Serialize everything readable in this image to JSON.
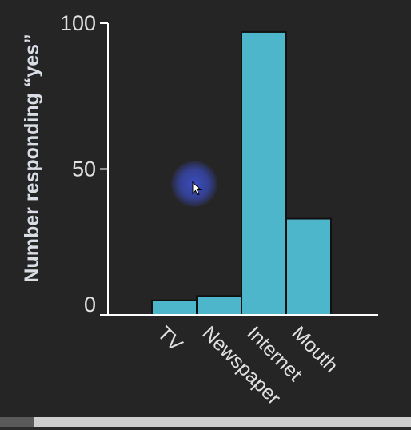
{
  "chart_data": {
    "type": "bar",
    "categories": [
      "TV",
      "Newspaper",
      "Internet",
      "Mouth"
    ],
    "values": [
      5,
      6.5,
      97,
      33
    ],
    "ylabel": "Number responding “yes”",
    "xlabel": "",
    "ylim": [
      0,
      100
    ],
    "yticks": [
      0,
      50,
      100
    ],
    "bar_color": "#4db6cb",
    "grid": false
  }
}
